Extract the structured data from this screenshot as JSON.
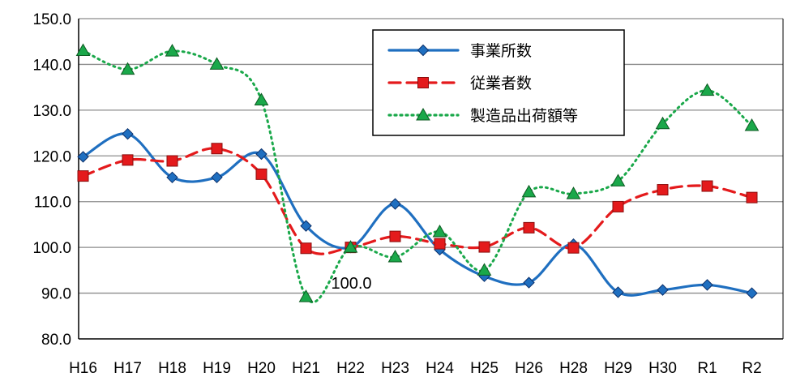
{
  "chart_data": {
    "type": "line",
    "title": "",
    "xlabel": "",
    "ylabel": "",
    "categories": [
      "H16",
      "H17",
      "H18",
      "H19",
      "H20",
      "H21",
      "H22",
      "H23",
      "H24",
      "H25",
      "H26",
      "H28",
      "H29",
      "H30",
      "R1",
      "R2"
    ],
    "ylim": [
      80,
      150
    ],
    "yticks": [
      "80.0",
      "90.0",
      "100.0",
      "110.0",
      "120.0",
      "130.0",
      "140.0",
      "150.0"
    ],
    "grid": true,
    "legend_position": "top-right",
    "annotation": {
      "text": "100.0",
      "category": "H22",
      "value": 100
    },
    "series": [
      {
        "name": "事業所数",
        "color": "#1f6fc0",
        "marker": "diamond",
        "line": "solid",
        "values": [
          119.8,
          124.8,
          115.3,
          115.3,
          120.4,
          104.7,
          100.0,
          109.5,
          99.5,
          93.7,
          92.3,
          100.7,
          90.2,
          90.7,
          91.8,
          90.0
        ]
      },
      {
        "name": "従業者数",
        "color": "#e41a1c",
        "marker": "square",
        "line": "dashed",
        "values": [
          115.6,
          119.1,
          118.9,
          121.6,
          116.0,
          99.8,
          100.0,
          102.4,
          100.8,
          100.1,
          104.3,
          99.9,
          108.9,
          112.6,
          113.4,
          110.9
        ]
      },
      {
        "name": "製造品出荷額等",
        "color": "#1aa84a",
        "marker": "triangle",
        "line": "dotted",
        "values": [
          143.0,
          138.9,
          142.9,
          140.0,
          132.2,
          89.2,
          100.0,
          97.9,
          103.4,
          95.0,
          112.1,
          111.7,
          114.5,
          127.0,
          134.3,
          126.6
        ]
      }
    ]
  }
}
